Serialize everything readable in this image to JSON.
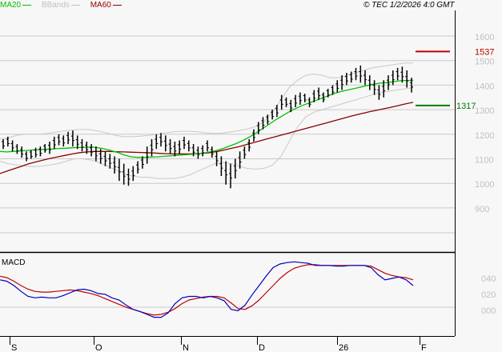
{
  "legend": {
    "items": [
      {
        "label": "MA20",
        "color": "#00c000"
      },
      {
        "label": "BBands",
        "color": "#c0c0c0"
      },
      {
        "label": "MA60",
        "color": "#8b0000"
      }
    ]
  },
  "copyright": "© TEC 1/2/2026 4:0 GMT",
  "markers": {
    "resistance": {
      "value": "1537",
      "color": "#c00000"
    },
    "support": {
      "value": "1317",
      "color": "#008000"
    }
  },
  "macd_panel": {
    "title": "MACD"
  },
  "chart_data": [
    {
      "type": "ohlc",
      "title": "",
      "yaxis_ticks": [
        "1600",
        "1500",
        "1400",
        "1300",
        "1200",
        "1100",
        "1000",
        "900"
      ],
      "ylim": [
        800,
        1700
      ],
      "xaxis_ticks": [
        "S",
        "O",
        "N",
        "D",
        "26",
        "F"
      ],
      "grid": true,
      "legend_position": "top-left",
      "series": [
        {
          "name": "MA20",
          "color": "#00c000"
        },
        {
          "name": "BBands",
          "color": "#c0c0c0"
        },
        {
          "name": "MA60",
          "color": "#8b0000"
        }
      ],
      "price_lines": [
        {
          "label": "1537",
          "value": 1537,
          "color": "#c00000"
        },
        {
          "label": "1317",
          "value": 1317,
          "color": "#008000"
        }
      ],
      "bars_hl": [
        [
          1180,
          1140
        ],
        [
          1190,
          1150
        ],
        [
          1175,
          1130
        ],
        [
          1160,
          1120
        ],
        [
          1150,
          1105
        ],
        [
          1130,
          1090
        ],
        [
          1135,
          1100
        ],
        [
          1145,
          1105
        ],
        [
          1150,
          1110
        ],
        [
          1160,
          1125
        ],
        [
          1170,
          1120
        ],
        [
          1190,
          1140
        ],
        [
          1200,
          1155
        ],
        [
          1195,
          1150
        ],
        [
          1210,
          1160
        ],
        [
          1215,
          1150
        ],
        [
          1195,
          1140
        ],
        [
          1180,
          1130
        ],
        [
          1170,
          1120
        ],
        [
          1160,
          1110
        ],
        [
          1150,
          1090
        ],
        [
          1140,
          1080
        ],
        [
          1130,
          1070
        ],
        [
          1120,
          1060
        ],
        [
          1110,
          1040
        ],
        [
          1100,
          1010
        ],
        [
          1080,
          995
        ],
        [
          1060,
          990
        ],
        [
          1070,
          1010
        ],
        [
          1090,
          1040
        ],
        [
          1110,
          1060
        ],
        [
          1150,
          1080
        ],
        [
          1180,
          1110
        ],
        [
          1200,
          1140
        ],
        [
          1205,
          1150
        ],
        [
          1195,
          1130
        ],
        [
          1180,
          1120
        ],
        [
          1170,
          1110
        ],
        [
          1175,
          1120
        ],
        [
          1190,
          1140
        ],
        [
          1175,
          1130
        ],
        [
          1160,
          1110
        ],
        [
          1150,
          1100
        ],
        [
          1155,
          1110
        ],
        [
          1175,
          1130
        ],
        [
          1150,
          1105
        ],
        [
          1130,
          1070
        ],
        [
          1110,
          1030
        ],
        [
          1090,
          995
        ],
        [
          1080,
          980
        ],
        [
          1100,
          1020
        ],
        [
          1130,
          1060
        ],
        [
          1150,
          1100
        ],
        [
          1180,
          1130
        ],
        [
          1220,
          1170
        ],
        [
          1250,
          1200
        ],
        [
          1270,
          1220
        ],
        [
          1280,
          1240
        ],
        [
          1300,
          1260
        ],
        [
          1320,
          1270
        ],
        [
          1360,
          1300
        ],
        [
          1350,
          1310
        ],
        [
          1340,
          1290
        ],
        [
          1360,
          1310
        ],
        [
          1370,
          1320
        ],
        [
          1365,
          1330
        ],
        [
          1350,
          1310
        ],
        [
          1380,
          1330
        ],
        [
          1390,
          1340
        ],
        [
          1370,
          1330
        ],
        [
          1385,
          1350
        ],
        [
          1400,
          1360
        ],
        [
          1420,
          1370
        ],
        [
          1440,
          1380
        ],
        [
          1450,
          1400
        ],
        [
          1455,
          1410
        ],
        [
          1470,
          1420
        ],
        [
          1480,
          1410
        ],
        [
          1460,
          1400
        ],
        [
          1440,
          1380
        ],
        [
          1420,
          1360
        ],
        [
          1400,
          1340
        ],
        [
          1420,
          1350
        ],
        [
          1440,
          1380
        ],
        [
          1460,
          1400
        ],
        [
          1470,
          1420
        ],
        [
          1475,
          1410
        ],
        [
          1460,
          1390
        ],
        [
          1430,
          1370
        ]
      ],
      "ma20": [
        1130,
        1128,
        1130,
        1132,
        1134,
        1136,
        1137,
        1139,
        1140,
        1142,
        1143,
        1145,
        1146,
        1147,
        1148,
        1145,
        1140,
        1133,
        1125,
        1115,
        1108,
        1106,
        1106,
        1107,
        1108,
        1110,
        1112,
        1114,
        1116,
        1118,
        1120,
        1123,
        1128,
        1134,
        1142,
        1152,
        1162,
        1174,
        1188,
        1204,
        1222,
        1240,
        1258,
        1274,
        1290,
        1304,
        1316,
        1326,
        1336,
        1346,
        1356,
        1366,
        1374,
        1380,
        1386,
        1392,
        1398,
        1404,
        1408,
        1410,
        1414,
        1418,
        1419,
        1420
      ],
      "ma60": [
        1040,
        1050,
        1060,
        1070,
        1080,
        1088,
        1095,
        1102,
        1108,
        1114,
        1120,
        1125,
        1128,
        1130,
        1130,
        1130,
        1129,
        1128,
        1127,
        1126,
        1125,
        1124,
        1122,
        1121,
        1120,
        1120,
        1120,
        1121,
        1122,
        1125,
        1130,
        1136,
        1143,
        1150,
        1158,
        1166,
        1174,
        1182,
        1190,
        1198,
        1206,
        1214,
        1222,
        1230,
        1238,
        1246,
        1254,
        1262,
        1270,
        1278,
        1285,
        1292,
        1298,
        1304,
        1310,
        1317,
        1324,
        1330
      ],
      "bb_upper": [
        1180,
        1185,
        1195,
        1200,
        1200,
        1200,
        1205,
        1210,
        1215,
        1218,
        1220,
        1218,
        1212,
        1205,
        1195,
        1190,
        1190,
        1192,
        1195,
        1200,
        1205,
        1210,
        1212,
        1212,
        1210,
        1205,
        1203,
        1205,
        1210,
        1215,
        1222,
        1232,
        1252,
        1290,
        1340,
        1390,
        1420,
        1440,
        1445,
        1440,
        1430,
        1430,
        1440,
        1450,
        1460,
        1470,
        1475,
        1480,
        1485,
        1490,
        1490
      ],
      "bb_lower": [
        1090,
        1080,
        1075,
        1070,
        1068,
        1070,
        1075,
        1080,
        1090,
        1100,
        1100,
        1095,
        1085,
        1070,
        1055,
        1040,
        1030,
        1025,
        1025,
        1020,
        1020,
        1020,
        1025,
        1035,
        1050,
        1065,
        1080,
        1085,
        1080,
        1070,
        1060,
        1058,
        1062,
        1075,
        1110,
        1170,
        1230,
        1270,
        1290,
        1300,
        1310,
        1320,
        1330,
        1340,
        1350,
        1360,
        1370,
        1375,
        1380,
        1385,
        1390
      ]
    },
    {
      "type": "line",
      "title": "MACD",
      "yaxis_ticks": [
        "040",
        "020",
        "000"
      ],
      "xaxis_ticks": [
        "S",
        "O",
        "N",
        "D",
        "26",
        "F"
      ],
      "series": [
        {
          "name": "MACD",
          "color": "#0000c0",
          "values": [
            0.38,
            0.36,
            0.3,
            0.22,
            0.15,
            0.13,
            0.14,
            0.13,
            0.13,
            0.16,
            0.2,
            0.24,
            0.25,
            0.23,
            0.19,
            0.18,
            0.13,
            0.1,
            0.03,
            -0.03,
            -0.06,
            -0.1,
            -0.14,
            -0.14,
            -0.08,
            0.05,
            0.13,
            0.15,
            0.15,
            0.13,
            0.15,
            0.13,
            0.09,
            -0.03,
            -0.05,
            0.03,
            0.17,
            0.3,
            0.43,
            0.55,
            0.6,
            0.62,
            0.63,
            0.62,
            0.61,
            0.58,
            0.58,
            0.58,
            0.57,
            0.57,
            0.58,
            0.58,
            0.58,
            0.55,
            0.45,
            0.38,
            0.4,
            0.42,
            0.38,
            0.3
          ]
        },
        {
          "name": "Signal",
          "color": "#c00000",
          "values": [
            0.43,
            0.41,
            0.36,
            0.3,
            0.25,
            0.22,
            0.21,
            0.21,
            0.22,
            0.23,
            0.24,
            0.23,
            0.21,
            0.19,
            0.16,
            0.12,
            0.08,
            0.04,
            0.0,
            -0.03,
            -0.06,
            -0.09,
            -0.11,
            -0.1,
            -0.07,
            -0.02,
            0.05,
            0.1,
            0.12,
            0.14,
            0.15,
            0.15,
            0.13,
            0.06,
            -0.02,
            -0.03,
            0.02,
            0.1,
            0.2,
            0.3,
            0.4,
            0.48,
            0.54,
            0.57,
            0.59,
            0.59,
            0.58,
            0.58,
            0.58,
            0.58,
            0.58,
            0.58,
            0.58,
            0.57,
            0.52,
            0.47,
            0.44,
            0.42,
            0.41,
            0.38
          ]
        }
      ]
    }
  ]
}
